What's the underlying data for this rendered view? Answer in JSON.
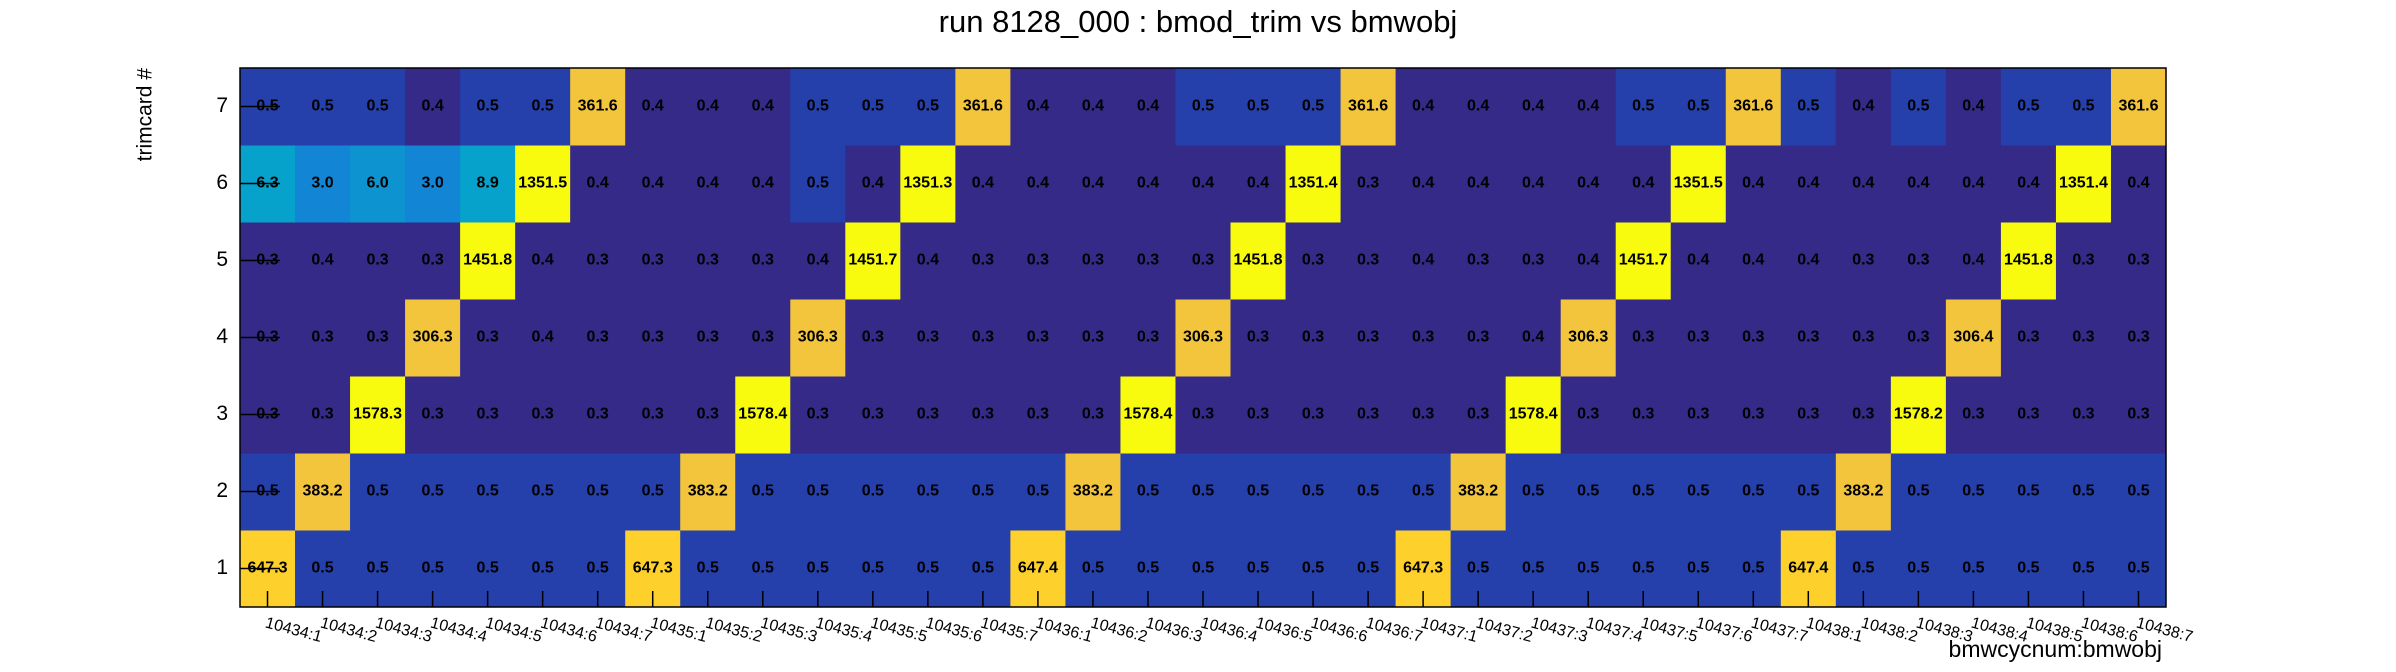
{
  "chart_data": {
    "type": "heatmap",
    "title": "run 8128_000 : bmod_trim vs bmwobj",
    "x_label": "bmwcycnum:bmwobj",
    "y_label": "trimcard #",
    "x": [
      "10434:1",
      "10434:2",
      "10434:3",
      "10434:4",
      "10434:5",
      "10434:6",
      "10434:7",
      "10435:1",
      "10435:2",
      "10435:3",
      "10435:4",
      "10435:5",
      "10435:6",
      "10435:7",
      "10436:1",
      "10436:2",
      "10436:3",
      "10436:4",
      "10436:5",
      "10436:6",
      "10436:7",
      "10437:1",
      "10437:2",
      "10437:3",
      "10437:4",
      "10437:5",
      "10437:6",
      "10437:7",
      "10438:1",
      "10438:2",
      "10438:3",
      "10438:4",
      "10438:5",
      "10438:6",
      "10438:7"
    ],
    "ylim": [
      0.5,
      7.5
    ],
    "yticks": [
      1,
      2,
      3,
      4,
      5,
      6,
      7
    ],
    "zlog": true,
    "contours": 20,
    "palette": [
      "#352a87",
      "#0f5cdd",
      "#1481d6",
      "#06a4ca",
      "#2eb7a4",
      "#87bf77",
      "#d1bb59",
      "#fec832",
      "#f9fb0e"
    ],
    "z": [
      [
        647.3,
        0.5,
        0.5,
        0.5,
        0.5,
        0.5,
        0.5,
        647.3,
        0.5,
        0.5,
        0.5,
        0.5,
        0.5,
        0.5,
        647.4,
        0.5,
        0.5,
        0.5,
        0.5,
        0.5,
        0.5,
        647.3,
        0.5,
        0.5,
        0.5,
        0.5,
        0.5,
        0.5,
        647.4,
        0.5,
        0.5,
        0.5,
        0.5,
        0.5,
        0.5
      ],
      [
        0.5,
        383.2,
        0.5,
        0.5,
        0.5,
        0.5,
        0.5,
        0.5,
        383.2,
        0.5,
        0.5,
        0.5,
        0.5,
        0.5,
        0.5,
        383.2,
        0.5,
        0.5,
        0.5,
        0.5,
        0.5,
        0.5,
        383.2,
        0.5,
        0.5,
        0.5,
        0.5,
        0.5,
        0.5,
        383.2,
        0.5,
        0.5,
        0.5,
        0.5,
        0.5
      ],
      [
        0.3,
        0.3,
        1578.3,
        0.3,
        0.3,
        0.3,
        0.3,
        0.3,
        0.3,
        1578.4,
        0.3,
        0.3,
        0.3,
        0.3,
        0.3,
        0.3,
        1578.4,
        0.3,
        0.3,
        0.3,
        0.3,
        0.3,
        0.3,
        1578.4,
        0.3,
        0.3,
        0.3,
        0.3,
        0.3,
        0.3,
        1578.2,
        0.3,
        0.3,
        0.3,
        0.3
      ],
      [
        0.3,
        0.3,
        0.3,
        306.3,
        0.3,
        0.4,
        0.3,
        0.3,
        0.3,
        0.3,
        306.3,
        0.3,
        0.3,
        0.3,
        0.3,
        0.3,
        0.3,
        306.3,
        0.3,
        0.3,
        0.3,
        0.3,
        0.3,
        0.4,
        306.3,
        0.3,
        0.3,
        0.3,
        0.3,
        0.3,
        0.3,
        306.4,
        0.3,
        0.3,
        0.3
      ],
      [
        0.3,
        0.4,
        0.3,
        0.3,
        1451.8,
        0.4,
        0.3,
        0.3,
        0.3,
        0.3,
        0.4,
        1451.7,
        0.4,
        0.3,
        0.3,
        0.3,
        0.3,
        0.3,
        1451.8,
        0.3,
        0.3,
        0.4,
        0.3,
        0.3,
        0.4,
        1451.7,
        0.4,
        0.4,
        0.4,
        0.3,
        0.3,
        0.4,
        1451.8,
        0.3,
        0.3
      ],
      [
        6.3,
        3.0,
        6.0,
        3.0,
        8.9,
        1351.5,
        0.4,
        0.4,
        0.4,
        0.4,
        0.5,
        0.4,
        1351.3,
        0.4,
        0.4,
        0.4,
        0.4,
        0.4,
        0.4,
        1351.4,
        0.3,
        0.4,
        0.4,
        0.4,
        0.4,
        0.4,
        1351.5,
        0.4,
        0.4,
        0.4,
        0.4,
        0.4,
        0.4,
        1351.4,
        0.4
      ],
      [
        0.5,
        0.5,
        0.5,
        0.4,
        0.5,
        0.5,
        361.6,
        0.4,
        0.4,
        0.4,
        0.5,
        0.5,
        0.5,
        361.6,
        0.4,
        0.4,
        0.4,
        0.5,
        0.5,
        0.5,
        361.6,
        0.4,
        0.4,
        0.4,
        0.4,
        0.5,
        0.5,
        361.6,
        0.5,
        0.4,
        0.5,
        0.4,
        0.5,
        0.5,
        361.6
      ]
    ],
    "value_labels": [
      [
        "647.3",
        "0.5",
        "0.5",
        "0.5",
        "0.5",
        "0.5",
        "0.5",
        "647.3",
        "0.5",
        "0.5",
        "0.5",
        "0.5",
        "0.5",
        "0.5",
        "647.4",
        "0.5",
        "0.5",
        "0.5",
        "0.5",
        "0.5",
        "0.5",
        "647.3",
        "0.5",
        "0.5",
        "0.5",
        "0.5",
        "0.5",
        "0.5",
        "647.4",
        "0.5",
        "0.5",
        "0.5",
        "0.5",
        "0.5",
        "0.5"
      ],
      [
        "0.5",
        "383.2",
        "0.5",
        "0.5",
        "0.5",
        "0.5",
        "0.5",
        "0.5",
        "383.2",
        "0.5",
        "0.5",
        "0.5",
        "0.5",
        "0.5",
        "0.5",
        "383.2",
        "0.5",
        "0.5",
        "0.5",
        "0.5",
        "0.5",
        "0.5",
        "383.2",
        "0.5",
        "0.5",
        "0.5",
        "0.5",
        "0.5",
        "0.5",
        "383.2",
        "0.5",
        "0.5",
        "0.5",
        "0.5",
        "0.5"
      ],
      [
        "0.3",
        "0.3",
        "1578.3",
        "0.3",
        "0.3",
        "0.3",
        "0.3",
        "0.3",
        "0.3",
        "1578.4",
        "0.3",
        "0.3",
        "0.3",
        "0.3",
        "0.3",
        "0.3",
        "1578.4",
        "0.3",
        "0.3",
        "0.3",
        "0.3",
        "0.3",
        "0.3",
        "1578.4",
        "0.3",
        "0.3",
        "0.3",
        "0.3",
        "0.3",
        "0.3",
        "1578.2",
        "0.3",
        "0.3",
        "0.3",
        "0.3"
      ],
      [
        "0.3",
        "0.3",
        "0.3",
        "306.3",
        "0.3",
        "0.4",
        "0.3",
        "0.3",
        "0.3",
        "0.3",
        "306.3",
        "0.3",
        "0.3",
        "0.3",
        "0.3",
        "0.3",
        "0.3",
        "306.3",
        "0.3",
        "0.3",
        "0.3",
        "0.3",
        "0.3",
        "0.4",
        "306.3",
        "0.3",
        "0.3",
        "0.3",
        "0.3",
        "0.3",
        "0.3",
        "306.4",
        "0.3",
        "0.3",
        "0.3"
      ],
      [
        "0.3",
        "0.4",
        "0.3",
        "0.3",
        "1451.8",
        "0.4",
        "0.3",
        "0.3",
        "0.3",
        "0.3",
        "0.4",
        "1451.7",
        "0.4",
        "0.3",
        "0.3",
        "0.3",
        "0.3",
        "0.3",
        "1451.8",
        "0.3",
        "0.3",
        "0.4",
        "0.3",
        "0.3",
        "0.4",
        "1451.7",
        "0.4",
        "0.4",
        "0.4",
        "0.3",
        "0.3",
        "0.4",
        "1451.8",
        "0.3",
        "0.3"
      ],
      [
        "6.3",
        "3.0",
        "6.0",
        "3.0",
        "8.9",
        "1351.5",
        "0.4",
        "0.4",
        "0.4",
        "0.4",
        "0.5",
        "0.4",
        "1351.3",
        "0.4",
        "0.4",
        "0.4",
        "0.4",
        "0.4",
        "0.4",
        "1351.4",
        "0.3",
        "0.4",
        "0.4",
        "0.4",
        "0.4",
        "0.4",
        "1351.5",
        "0.4",
        "0.4",
        "0.4",
        "0.4",
        "0.4",
        "0.4",
        "1351.4",
        "0.4"
      ],
      [
        "0.5",
        "0.5",
        "0.5",
        "0.4",
        "0.5",
        "0.5",
        "361.6",
        "0.4",
        "0.4",
        "0.4",
        "0.5",
        "0.5",
        "0.5",
        "361.6",
        "0.4",
        "0.4",
        "0.4",
        "0.5",
        "0.5",
        "0.5",
        "361.6",
        "0.4",
        "0.4",
        "0.4",
        "0.4",
        "0.5",
        "0.5",
        "361.6",
        "0.5",
        "0.4",
        "0.5",
        "0.4",
        "0.5",
        "0.5",
        "361.6"
      ]
    ]
  }
}
